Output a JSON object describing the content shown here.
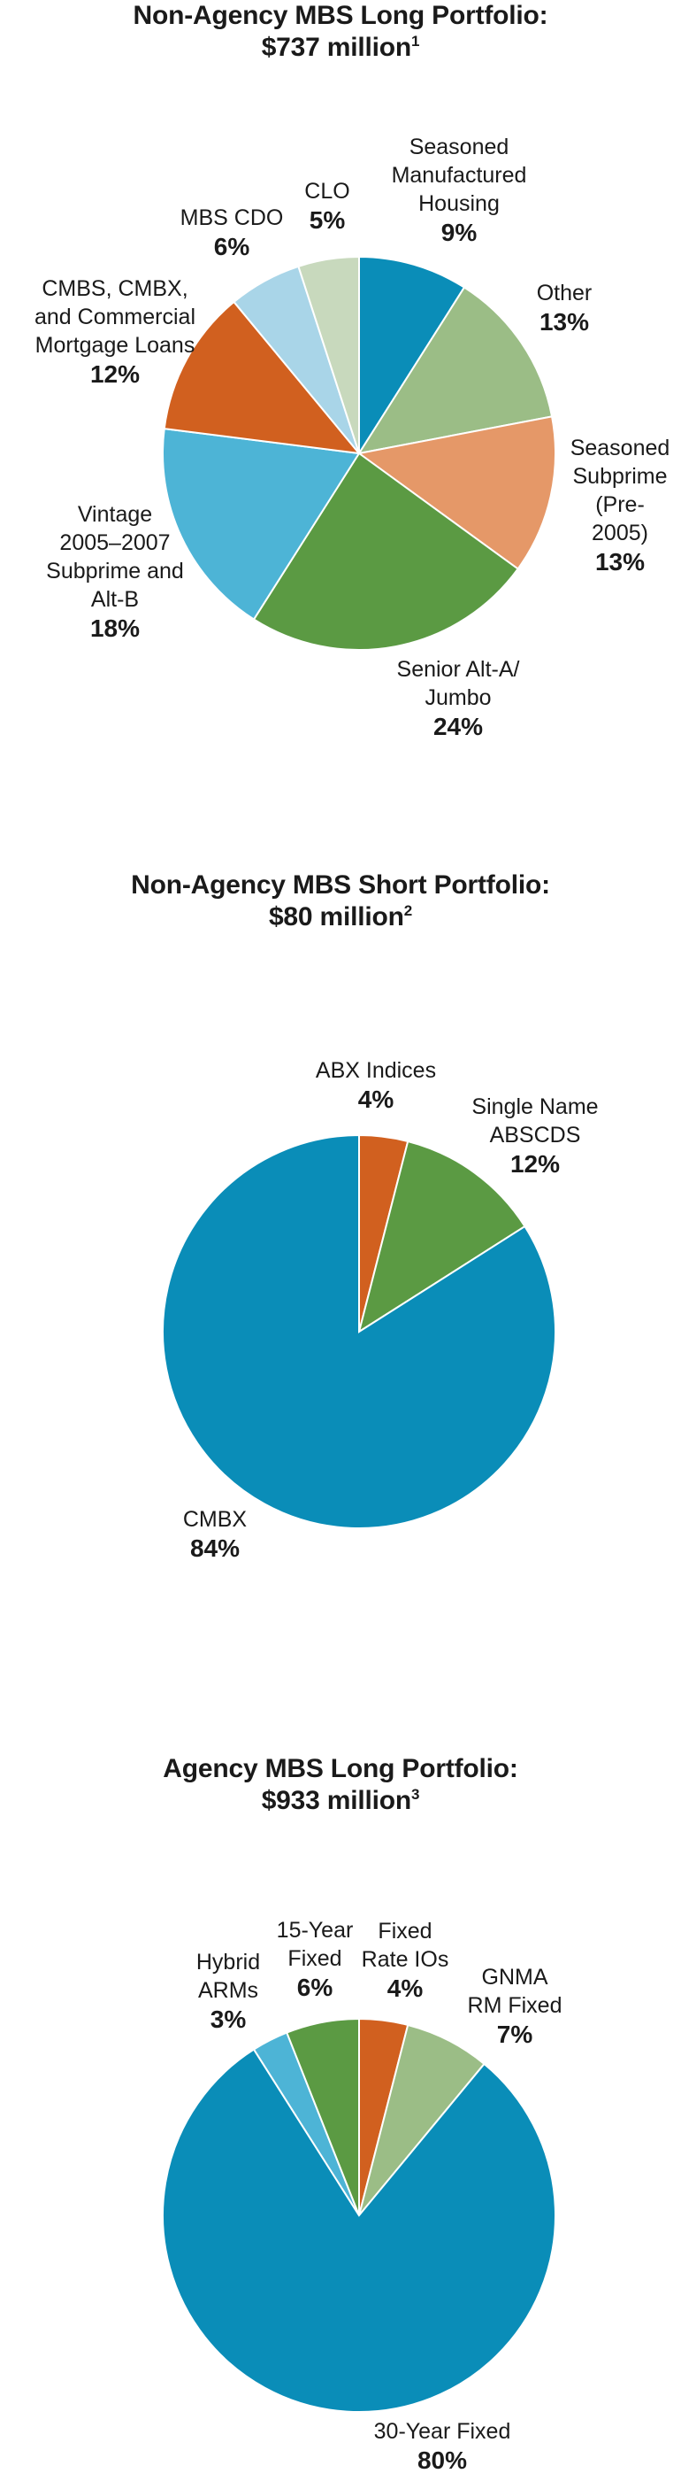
{
  "charts": [
    {
      "title_line1": "Non-Agency MBS Long Portfolio:",
      "title_line2": "$737 million",
      "title_sup": "1"
    },
    {
      "title_line1": "Non-Agency MBS Short Portfolio:",
      "title_line2": "$80 million",
      "title_sup": "2"
    },
    {
      "title_line1": "Agency MBS Long Portfolio:",
      "title_line2": "$933 million",
      "title_sup": "3"
    }
  ],
  "chart_data": [
    {
      "type": "pie",
      "title": "Non-Agency MBS Long Portfolio: $737 million",
      "slices": [
        {
          "label": "Seasoned\nManufactured\nHousing",
          "value": 9,
          "display": "9%",
          "color": "#0a8db8"
        },
        {
          "label": "Other",
          "value": 13,
          "display": "13%",
          "color": "#9bbd86"
        },
        {
          "label": "Seasoned\nSubprime\n(Pre-2005)",
          "value": 13,
          "display": "13%",
          "color": "#e59868"
        },
        {
          "label": "Senior Alt-A/\nJumbo",
          "value": 24,
          "display": "24%",
          "color": "#5b9a43"
        },
        {
          "label": "Vintage\n2005–2007\nSubprime and\nAlt-B",
          "value": 18,
          "display": "18%",
          "color": "#4db4d6"
        },
        {
          "label": "CMBS, CMBX,\nand Commercial\nMortgage Loans",
          "value": 12,
          "display": "12%",
          "color": "#d1601f"
        },
        {
          "label": "MBS CDO",
          "value": 6,
          "display": "6%",
          "color": "#a9d5e8"
        },
        {
          "label": "CLO",
          "value": 5,
          "display": "5%",
          "color": "#c8d9bd"
        }
      ]
    },
    {
      "type": "pie",
      "title": "Non-Agency MBS Short Portfolio: $80 million",
      "slices": [
        {
          "label": "ABX Indices",
          "value": 4,
          "display": "4%",
          "color": "#d1601f"
        },
        {
          "label": "Single Name\nABSCDS",
          "value": 12,
          "display": "12%",
          "color": "#5b9a43"
        },
        {
          "label": "CMBX",
          "value": 84,
          "display": "84%",
          "color": "#0a8db8"
        }
      ]
    },
    {
      "type": "pie",
      "title": "Agency MBS Long Portfolio: $933 million",
      "slices": [
        {
          "label": "Fixed\nRate IOs",
          "value": 4,
          "display": "4%",
          "color": "#d1601f"
        },
        {
          "label": "GNMA\nRM Fixed",
          "value": 7,
          "display": "7%",
          "color": "#9bbd86"
        },
        {
          "label": "30-Year Fixed",
          "value": 80,
          "display": "80%",
          "color": "#0a8db8"
        },
        {
          "label": "Hybrid\nARMs",
          "value": 3,
          "display": "3%",
          "color": "#4db4d6"
        },
        {
          "label": "15-Year\nFixed",
          "value": 6,
          "display": "6%",
          "color": "#5b9a43"
        }
      ]
    }
  ]
}
